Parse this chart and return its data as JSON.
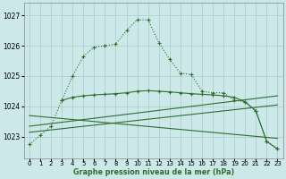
{
  "title": "Graphe pression niveau de la mer (hPa)",
  "background_color": "#cce8e8",
  "grid_color": "#aacccc",
  "line_color": "#2d6e2d",
  "x_ticks": [
    0,
    1,
    2,
    3,
    4,
    5,
    6,
    7,
    8,
    9,
    10,
    11,
    12,
    13,
    14,
    15,
    16,
    17,
    18,
    19,
    20,
    21,
    22,
    23
  ],
  "y_ticks": [
    1023,
    1024,
    1025,
    1026,
    1027
  ],
  "ylim": [
    1022.3,
    1027.4
  ],
  "xlim": [
    -0.5,
    23.5
  ],
  "line1": {
    "x": [
      0,
      1,
      2,
      3,
      4,
      5,
      6,
      7,
      8,
      9,
      10,
      11,
      12,
      13,
      14,
      15,
      16,
      17,
      18,
      19,
      20,
      21,
      22,
      23
    ],
    "y": [
      1022.75,
      1023.05,
      1023.35,
      1024.2,
      1025.0,
      1025.65,
      1025.95,
      1026.0,
      1026.05,
      1026.5,
      1026.85,
      1026.85,
      1026.1,
      1025.55,
      1025.1,
      1025.05,
      1024.5,
      1024.45,
      1024.45,
      1024.2,
      1024.15,
      1023.85,
      1022.85,
      1022.6
    ]
  },
  "line2": {
    "x": [
      3,
      4,
      5,
      6,
      7,
      8,
      9,
      10,
      11,
      12,
      13,
      14,
      15,
      16,
      17,
      18,
      19,
      20,
      21,
      22,
      23
    ],
    "y": [
      1024.2,
      1024.3,
      1024.35,
      1024.38,
      1024.4,
      1024.42,
      1024.45,
      1024.5,
      1024.52,
      1024.5,
      1024.48,
      1024.45,
      1024.42,
      1024.4,
      1024.38,
      1024.35,
      1024.3,
      1024.15,
      1023.85,
      1022.85,
      1022.6
    ]
  },
  "line3": {
    "x": [
      0,
      23
    ],
    "y": [
      1023.35,
      1024.35
    ]
  },
  "line4": {
    "x": [
      0,
      23
    ],
    "y": [
      1023.15,
      1024.05
    ]
  },
  "line5": {
    "x": [
      0,
      23
    ],
    "y": [
      1023.7,
      1022.95
    ]
  }
}
